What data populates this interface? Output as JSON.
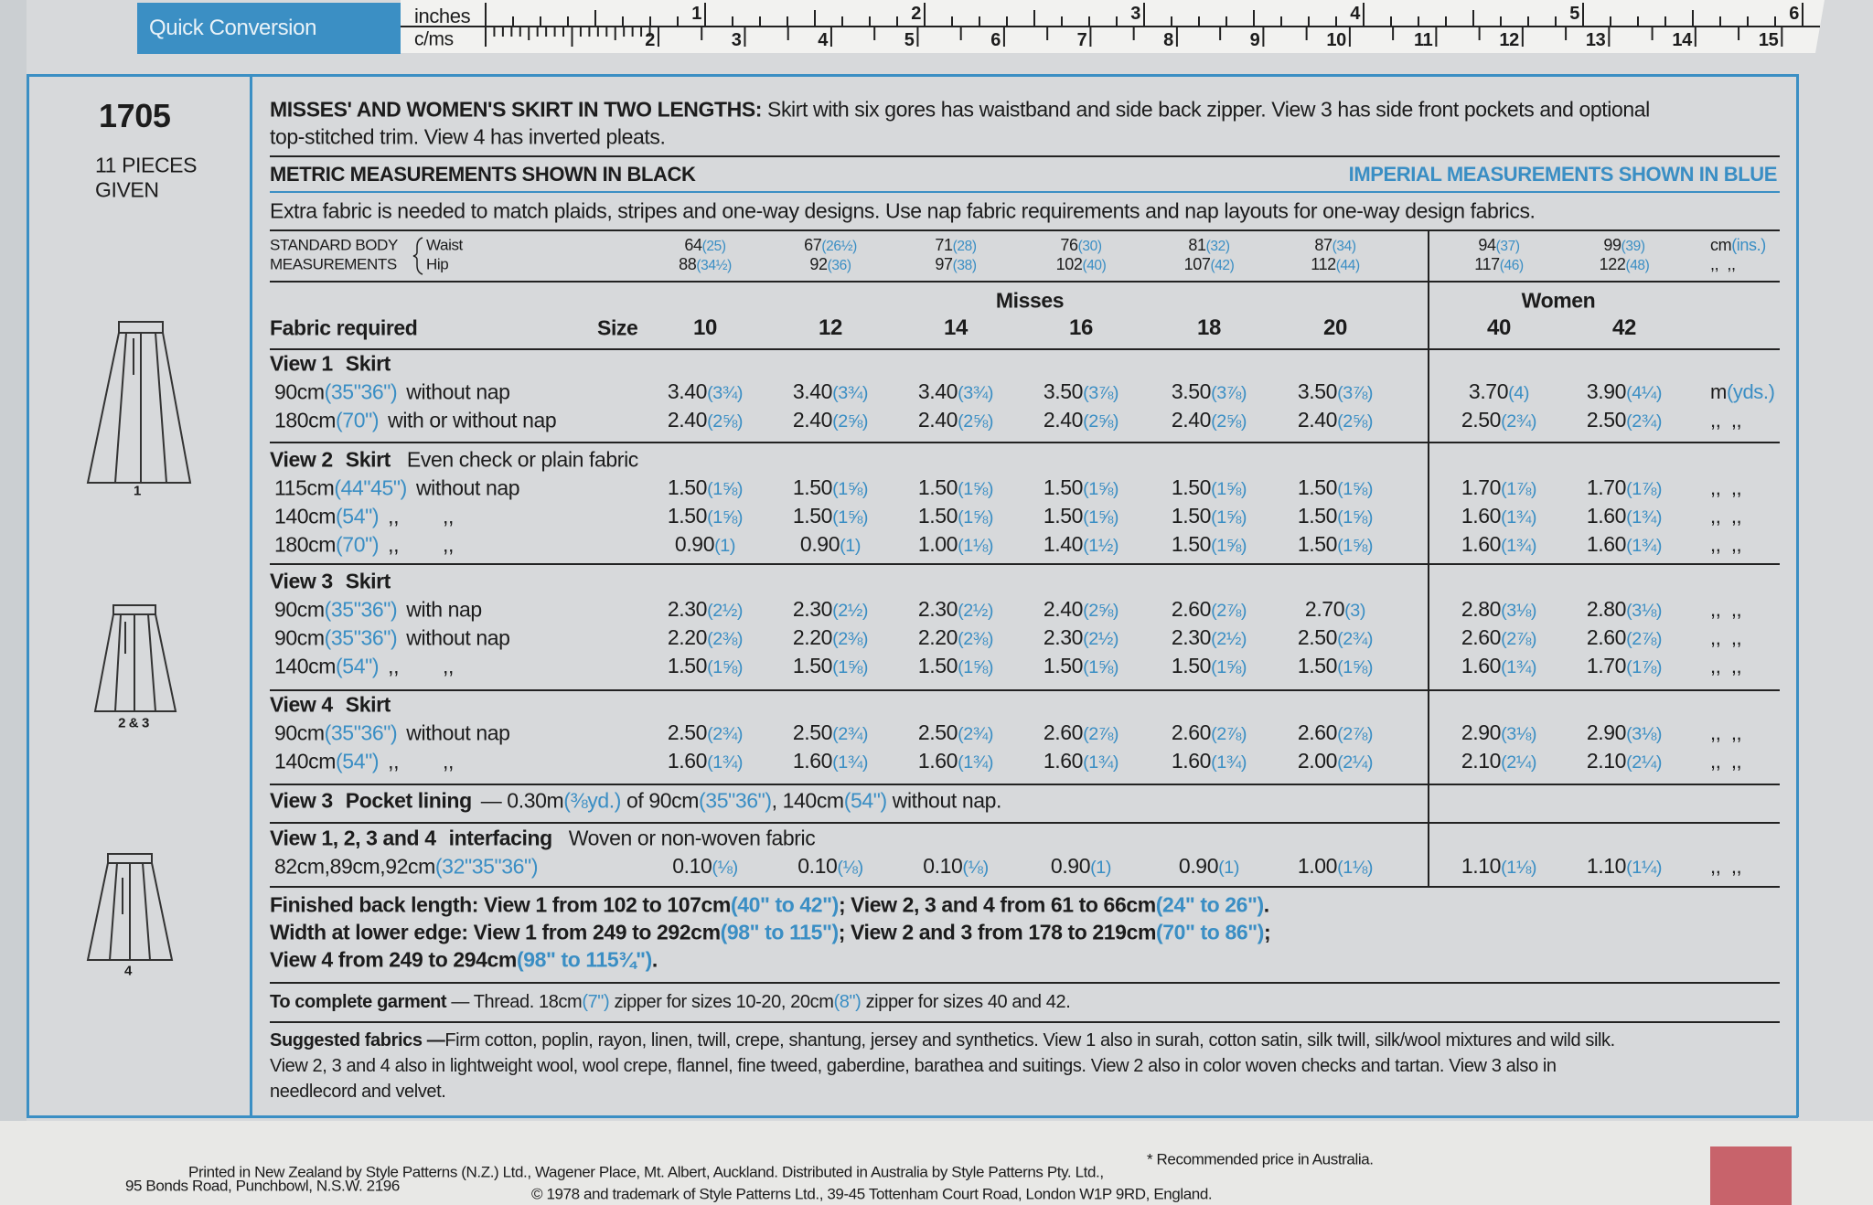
{
  "ruler": {
    "label": "Quick Conversion",
    "inches_label": "inches",
    "cms_label": "c/ms",
    "inch_labels": [
      "1",
      "2",
      "3",
      "4",
      "5",
      "6"
    ],
    "cm_labels": [
      "2",
      "3",
      "4",
      "5",
      "6",
      "7",
      "8",
      "9",
      "10",
      "11",
      "12",
      "13",
      "14",
      "15"
    ]
  },
  "pattern_number": "1705",
  "pieces": [
    "11 PIECES",
    "GIVEN"
  ],
  "view_labels": [
    "1",
    "2 & 3",
    "4"
  ],
  "description": {
    "heading": "MISSES' AND WOMEN'S SKIRT IN TWO LENGTHS:",
    "lines": [
      "Skirt with six gores has waistband and side back zipper. View 3 has side front pockets and optional",
      "top-stitched trim. View 4 has inverted pleats."
    ]
  },
  "metric_note": "METRIC MEASUREMENTS SHOWN IN BLACK",
  "imperial_note": "IMPERIAL MEASUREMENTS SHOWN IN BLUE",
  "extra_note": "Extra fabric is needed to match plaids, stripes and one-way designs. Use nap fabric requirements and nap layouts for one-way design fabrics.",
  "body": {
    "labels": [
      "STANDARD BODY",
      "MEASUREMENTS"
    ],
    "waist_label": "Waist",
    "hip_label": "Hip",
    "waist": [
      [
        "64",
        "(25)"
      ],
      [
        "67",
        "(26½)"
      ],
      [
        "71",
        "(28)"
      ],
      [
        "76",
        "(30)"
      ],
      [
        "81",
        "(32)"
      ],
      [
        "87",
        "(34)"
      ],
      [
        "94",
        "(37)"
      ],
      [
        "99",
        "(39)"
      ]
    ],
    "hip": [
      [
        "88",
        "(34½)"
      ],
      [
        "92",
        "(36)"
      ],
      [
        "97",
        "(38)"
      ],
      [
        "102",
        "(40)"
      ],
      [
        "107",
        "(42)"
      ],
      [
        "112",
        "(44)"
      ],
      [
        "117",
        "(46)"
      ],
      [
        "122",
        "(48)"
      ]
    ],
    "unit": [
      "cm",
      "(ins.)"
    ],
    "unit_hip": [
      ",,  ,,"
    ]
  },
  "header": {
    "fabric_required": "Fabric required",
    "size_label": "Size",
    "misses": "Misses",
    "women": "Women",
    "sizes": [
      "10",
      "12",
      "14",
      "16",
      "18",
      "20",
      "40",
      "42"
    ]
  },
  "groups": [
    {
      "view": "View 1",
      "item": "Skirt",
      "rows": [
        {
          "label": [
            "90cm",
            "(35\"36\")",
            "without nap"
          ],
          "values": [
            [
              "3.40",
              "(3¾)"
            ],
            [
              "3.40",
              "(3¾)"
            ],
            [
              "3.40",
              "(3¾)"
            ],
            [
              "3.50",
              "(3⅞)"
            ],
            [
              "3.50",
              "(3⅞)"
            ],
            [
              "3.50",
              "(3⅞)"
            ],
            [
              "3.70",
              "(4)"
            ],
            [
              "3.90",
              "(4¼)"
            ]
          ],
          "unit": [
            "m",
            "(yds.)"
          ]
        },
        {
          "label": [
            "180cm",
            "(70\")",
            "with or without nap"
          ],
          "values": [
            [
              "2.40",
              "(2⅝)"
            ],
            [
              "2.40",
              "(2⅝)"
            ],
            [
              "2.40",
              "(2⅝)"
            ],
            [
              "2.40",
              "(2⅝)"
            ],
            [
              "2.40",
              "(2⅝)"
            ],
            [
              "2.40",
              "(2⅝)"
            ],
            [
              "2.50",
              "(2¾)"
            ],
            [
              "2.50",
              "(2¾)"
            ]
          ],
          "unit": [
            ",,  ,,"
          ]
        }
      ]
    },
    {
      "view": "View 2",
      "item": "Skirt",
      "note": "Even check or plain fabric",
      "rows": [
        {
          "label": [
            "115cm",
            "(44\"45\")",
            "without nap"
          ],
          "values": [
            [
              "1.50",
              "(1⅝)"
            ],
            [
              "1.50",
              "(1⅝)"
            ],
            [
              "1.50",
              "(1⅝)"
            ],
            [
              "1.50",
              "(1⅝)"
            ],
            [
              "1.50",
              "(1⅝)"
            ],
            [
              "1.50",
              "(1⅝)"
            ],
            [
              "1.70",
              "(1⅞)"
            ],
            [
              "1.70",
              "(1⅞)"
            ]
          ],
          "unit": [
            ",,  ,,"
          ]
        },
        {
          "label": [
            "140cm",
            "(54\")",
            ",,        ,,"
          ],
          "values": [
            [
              "1.50",
              "(1⅝)"
            ],
            [
              "1.50",
              "(1⅝)"
            ],
            [
              "1.50",
              "(1⅝)"
            ],
            [
              "1.50",
              "(1⅝)"
            ],
            [
              "1.50",
              "(1⅝)"
            ],
            [
              "1.50",
              "(1⅝)"
            ],
            [
              "1.60",
              "(1¾)"
            ],
            [
              "1.60",
              "(1¾)"
            ]
          ],
          "unit": [
            ",,  ,,"
          ]
        },
        {
          "label": [
            "180cm",
            "(70\")",
            ",,        ,,"
          ],
          "values": [
            [
              "0.90",
              "(1)"
            ],
            [
              "0.90",
              "(1)"
            ],
            [
              "1.00",
              "(1⅛)"
            ],
            [
              "1.40",
              "(1½)"
            ],
            [
              "1.50",
              "(1⅝)"
            ],
            [
              "1.50",
              "(1⅝)"
            ],
            [
              "1.60",
              "(1¾)"
            ],
            [
              "1.60",
              "(1¾)"
            ]
          ],
          "unit": [
            ",,  ,,"
          ]
        }
      ]
    },
    {
      "view": "View 3",
      "item": "Skirt",
      "rows": [
        {
          "label": [
            "90cm",
            "(35\"36\")",
            "with nap"
          ],
          "values": [
            [
              "2.30",
              "(2½)"
            ],
            [
              "2.30",
              "(2½)"
            ],
            [
              "2.30",
              "(2½)"
            ],
            [
              "2.40",
              "(2⅝)"
            ],
            [
              "2.60",
              "(2⅞)"
            ],
            [
              "2.70",
              "(3)"
            ],
            [
              "2.80",
              "(3⅛)"
            ],
            [
              "2.80",
              "(3⅛)"
            ]
          ],
          "unit": [
            ",,  ,,"
          ]
        },
        {
          "label": [
            "90cm",
            "(35\"36\")",
            "without nap"
          ],
          "values": [
            [
              "2.20",
              "(2⅜)"
            ],
            [
              "2.20",
              "(2⅜)"
            ],
            [
              "2.20",
              "(2⅜)"
            ],
            [
              "2.30",
              "(2½)"
            ],
            [
              "2.30",
              "(2½)"
            ],
            [
              "2.50",
              "(2¾)"
            ],
            [
              "2.60",
              "(2⅞)"
            ],
            [
              "2.60",
              "(2⅞)"
            ]
          ],
          "unit": [
            ",,  ,,"
          ]
        },
        {
          "label": [
            "140cm",
            "(54\")",
            ",,        ,,"
          ],
          "values": [
            [
              "1.50",
              "(1⅝)"
            ],
            [
              "1.50",
              "(1⅝)"
            ],
            [
              "1.50",
              "(1⅝)"
            ],
            [
              "1.50",
              "(1⅝)"
            ],
            [
              "1.50",
              "(1⅝)"
            ],
            [
              "1.50",
              "(1⅝)"
            ],
            [
              "1.60",
              "(1¾)"
            ],
            [
              "1.70",
              "(1⅞)"
            ]
          ],
          "unit": [
            ",,  ,,"
          ]
        }
      ]
    },
    {
      "view": "View 4",
      "item": "Skirt",
      "rows": [
        {
          "label": [
            "90cm",
            "(35\"36\")",
            "without nap"
          ],
          "values": [
            [
              "2.50",
              "(2¾)"
            ],
            [
              "2.50",
              "(2¾)"
            ],
            [
              "2.50",
              "(2¾)"
            ],
            [
              "2.60",
              "(2⅞)"
            ],
            [
              "2.60",
              "(2⅞)"
            ],
            [
              "2.60",
              "(2⅞)"
            ],
            [
              "2.90",
              "(3⅛)"
            ],
            [
              "2.90",
              "(3⅛)"
            ]
          ],
          "unit": [
            ",,  ,,"
          ]
        },
        {
          "label": [
            "140cm",
            "(54\")",
            ",,        ,,"
          ],
          "values": [
            [
              "1.60",
              "(1¾)"
            ],
            [
              "1.60",
              "(1¾)"
            ],
            [
              "1.60",
              "(1¾)"
            ],
            [
              "1.60",
              "(1¾)"
            ],
            [
              "1.60",
              "(1¾)"
            ],
            [
              "2.00",
              "(2¼)"
            ],
            [
              "2.10",
              "(2¼)"
            ],
            [
              "2.10",
              "(2¼)"
            ]
          ],
          "unit": [
            ",,  ,,"
          ]
        }
      ]
    },
    {
      "view": "View 1, 2, 3 and 4",
      "item": "interfacing",
      "note": "Woven or non-woven fabric",
      "rows": [
        {
          "label": [
            "82cm,89cm,92cm",
            "(32\"35\"36\")"
          ],
          "values": [
            [
              "0.10",
              "(⅛)"
            ],
            [
              "0.10",
              "(⅛)"
            ],
            [
              "0.10",
              "(⅛)"
            ],
            [
              "0.90",
              "(1)"
            ],
            [
              "0.90",
              "(1)"
            ],
            [
              "1.00",
              "(1⅛)"
            ],
            [
              "1.10",
              "(1⅛)"
            ],
            [
              "1.10",
              "(1¼)"
            ]
          ],
          "unit": [
            ",,  ,,"
          ]
        }
      ]
    }
  ],
  "pocket": {
    "view": "View 3",
    "item": "Pocket lining",
    "text": [
      "— 0.30m",
      "(⅜yd.)",
      " of 90cm",
      "(35\"36\")",
      ", 140cm",
      "(54\")",
      " without nap."
    ]
  },
  "finished": [
    [
      "Finished back length: View 1 from 102 to 107cm",
      "(40\" to 42\")",
      "; View 2, 3 and 4 from 61 to 66cm",
      "(24\" to 26\")",
      "."
    ],
    [
      "Width at lower edge: View 1 from 249 to 292cm",
      "(98\" to 115\")",
      "; View 2 and 3 from 178 to 219cm",
      "(70\" to 86\")",
      ";"
    ],
    [
      "View 4 from 249 to 294cm",
      "(98\" to 115¾\")",
      "."
    ]
  ],
  "complete_garment": {
    "heading": "To complete garment",
    "text": [
      " — Thread. 18cm",
      "(7\")",
      " zipper for sizes 10-20, 20cm",
      "(8\")",
      " zipper for sizes 40 and 42."
    ]
  },
  "suggested_fabrics": {
    "heading": "Suggested fabrics —",
    "lines": [
      "Firm cotton, poplin, rayon, linen, twill, crepe, shantung, jersey and synthetics. View 1 also in surah, cotton satin, silk twill, silk/wool mixtures and wild silk.",
      "View 2, 3 and 4 also in lightweight wool, wool crepe, flannel, fine tweed, gaberdine, barathea and suitings. View 2 also in color woven checks and tartan. View 3 also in",
      "needlecord and velvet."
    ]
  },
  "footer": {
    "price_note": "* Recommended price in Australia.",
    "line_1": "Printed in New Zealand by Style Patterns (N.Z.) Ltd., Wagener Place, Mt. Albert, Auckland. Distributed in Australia by Style Patterns Pty. Ltd.,",
    "address": "95 Bonds Road, Punchbowl, N.S.W. 2196",
    "copyright": "© 1978 and trademark of Style Patterns Ltd., 39-45 Tottenham Court Road, London W1P 9RD, England."
  }
}
